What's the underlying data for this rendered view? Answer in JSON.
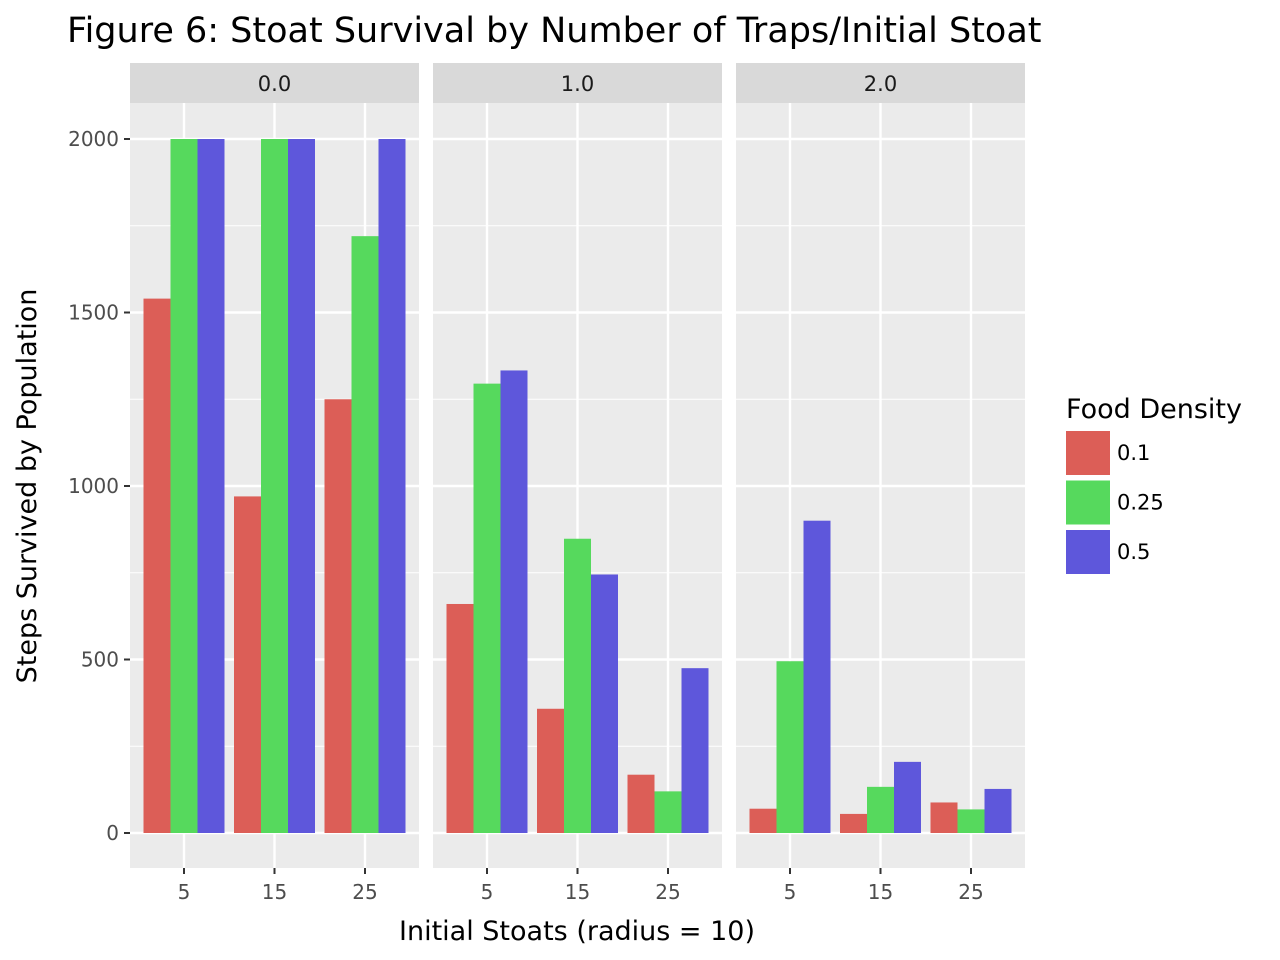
{
  "chart_data": {
    "type": "bar",
    "title": "Figure 6: Stoat Survival by Number of Traps/Initial Stoat",
    "xlabel": "Initial Stoats (radius = 10)",
    "ylabel": "Steps Survived by Population",
    "ylim": [
      -100,
      2100
    ],
    "yticks": [
      0,
      500,
      1000,
      1500,
      2000
    ],
    "grid": true,
    "legend": {
      "title": "Food Density",
      "placement": "right",
      "entries": [
        "0.1",
        "0.25",
        "0.5"
      ]
    },
    "colors": [
      "#DC5E57",
      "#56D95D",
      "#5E57DB"
    ],
    "categories": [
      "5",
      "15",
      "25"
    ],
    "facets": [
      {
        "label": "0.0",
        "series": [
          {
            "name": "0.1",
            "values": [
              1540,
              970,
              1250
            ]
          },
          {
            "name": "0.25",
            "values": [
              2000,
              2000,
              1720
            ]
          },
          {
            "name": "0.5",
            "values": [
              2000,
              2000,
              2000
            ]
          }
        ]
      },
      {
        "label": "1.0",
        "series": [
          {
            "name": "0.1",
            "values": [
              660,
              358,
              168
            ]
          },
          {
            "name": "0.25",
            "values": [
              1295,
              848,
              120
            ]
          },
          {
            "name": "0.5",
            "values": [
              1333,
              745,
              475
            ]
          }
        ]
      },
      {
        "label": "2.0",
        "series": [
          {
            "name": "0.1",
            "values": [
              70,
              55,
              88
            ]
          },
          {
            "name": "0.25",
            "values": [
              495,
              133,
              68
            ]
          },
          {
            "name": "0.5",
            "values": [
              900,
              205,
              127
            ]
          }
        ]
      }
    ]
  }
}
